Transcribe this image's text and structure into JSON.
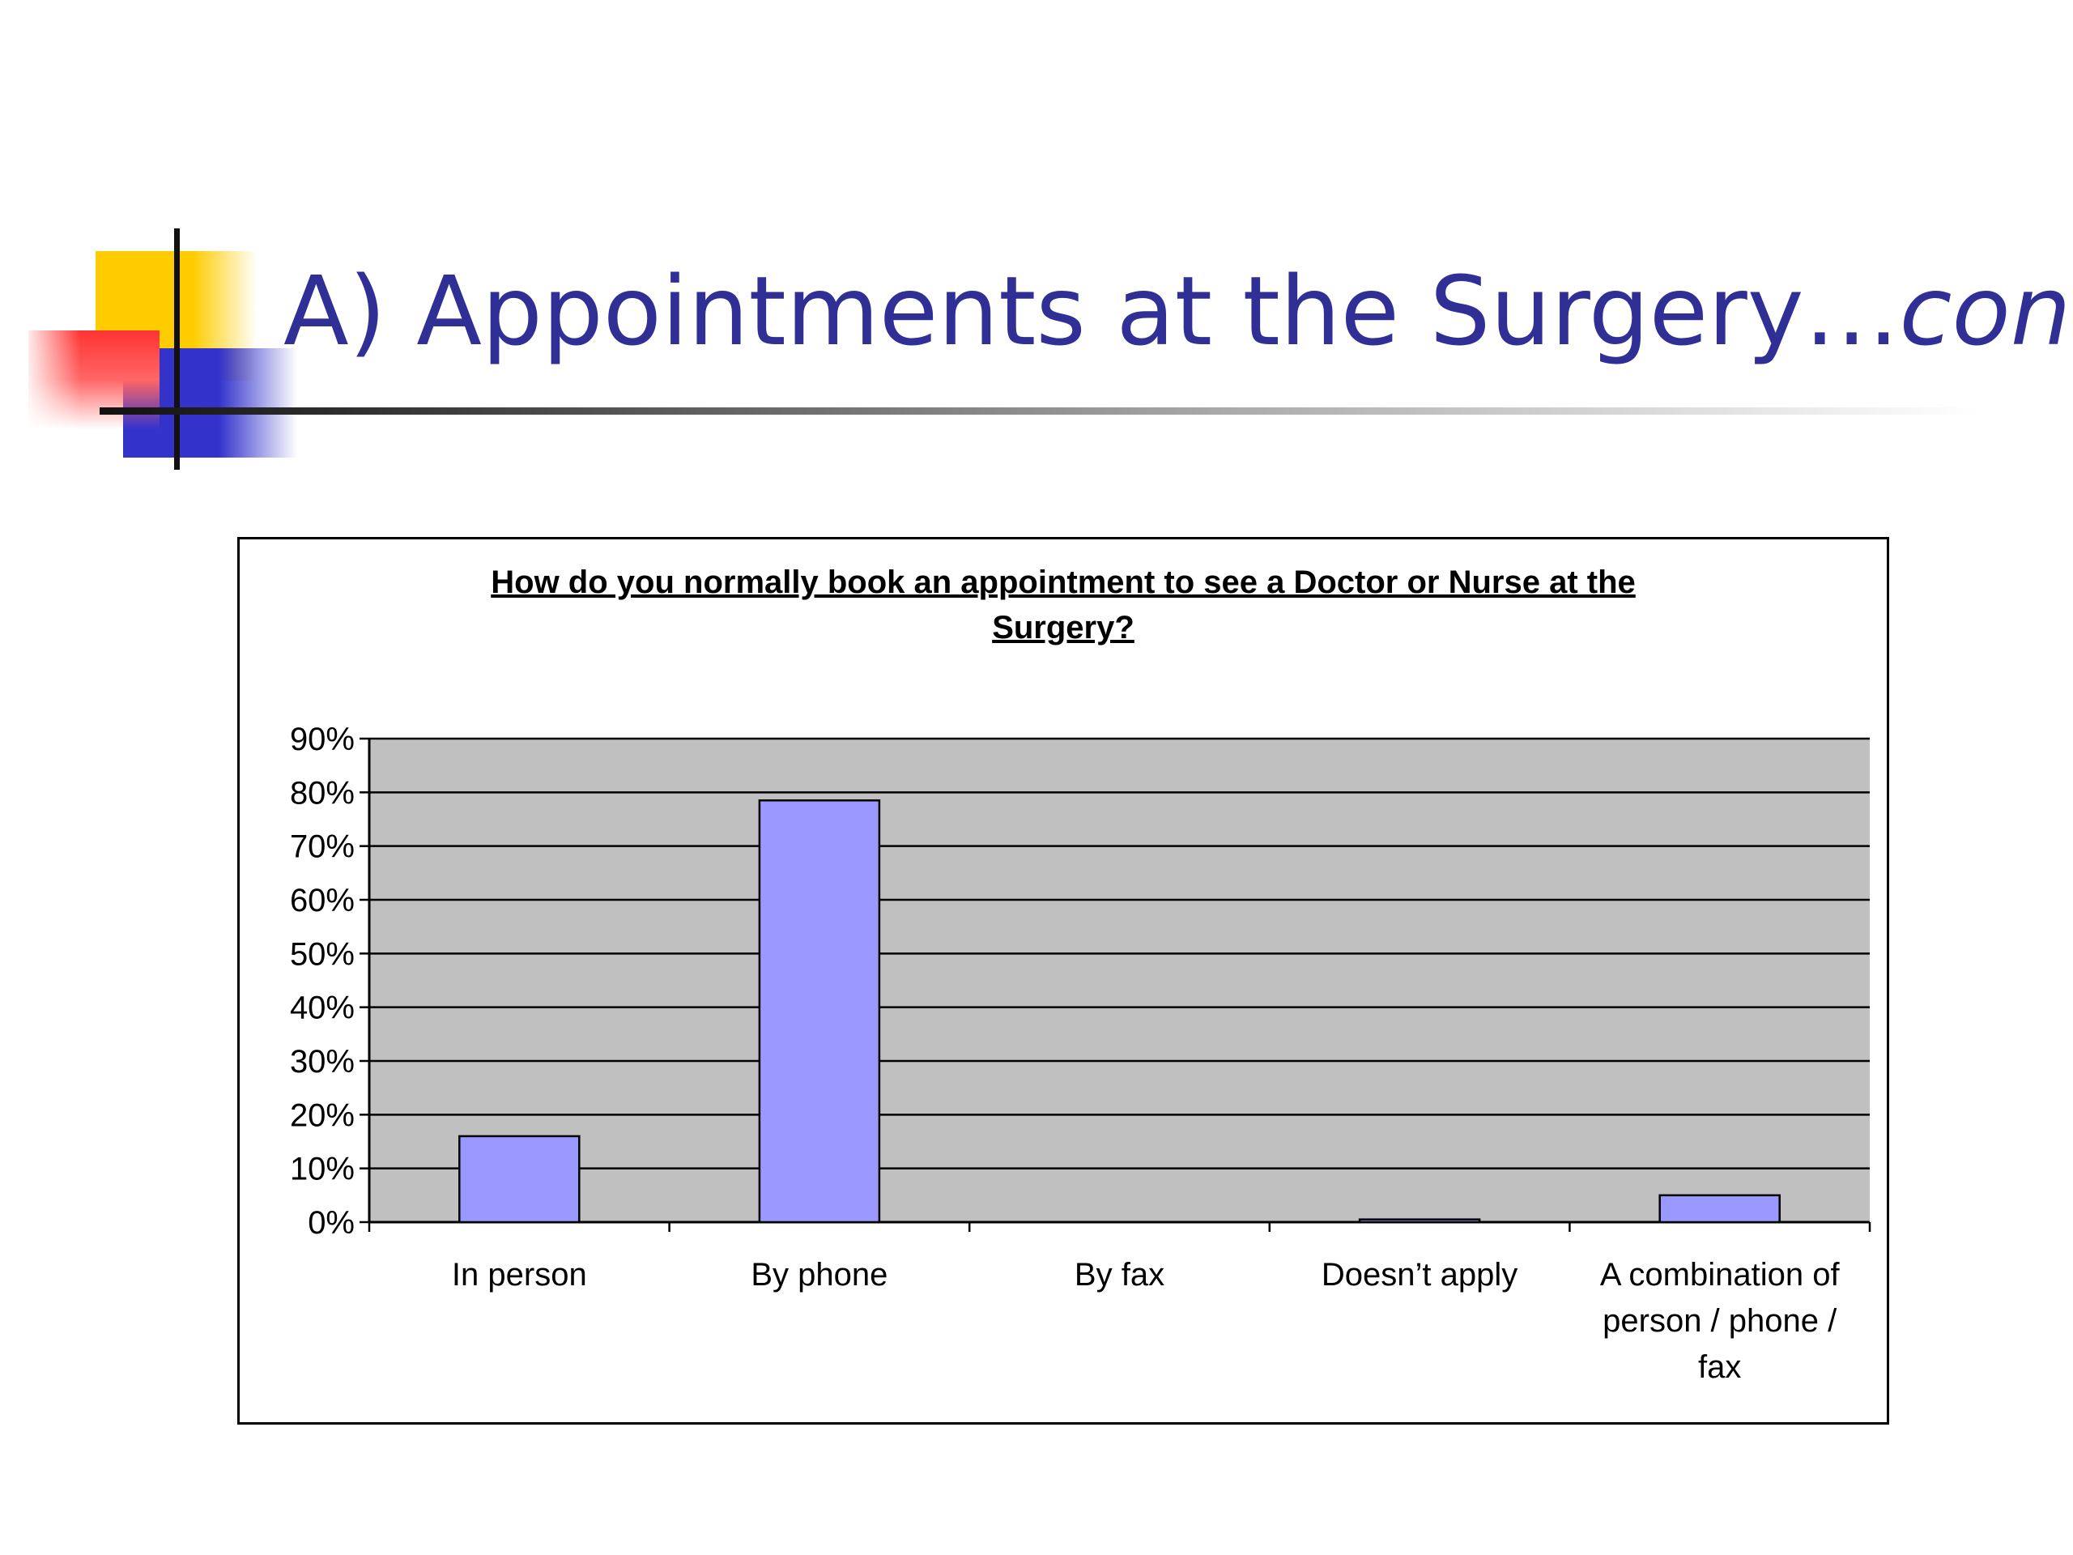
{
  "slide": {
    "title_main": "A) Appointments at the Surgery…",
    "title_cont": "cont",
    "colors": {
      "title": "#2f2f96",
      "yellow": "#ffcc00",
      "red": "#ff3333",
      "blue": "#3333cc"
    }
  },
  "chart_data": {
    "type": "bar",
    "title_lines": [
      "How do you normally book an appointment to see a Doctor or Nurse at the",
      "Surgery?"
    ],
    "categories": [
      [
        "In person"
      ],
      [
        "By phone"
      ],
      [
        "By fax"
      ],
      [
        "Doesn’t apply"
      ],
      [
        "A combination of",
        "person / phone /",
        "fax"
      ]
    ],
    "values": [
      16,
      78.5,
      0,
      0.5,
      5
    ],
    "yticks": [
      "0%",
      "10%",
      "20%",
      "30%",
      "40%",
      "50%",
      "60%",
      "70%",
      "80%",
      "90%"
    ],
    "ylim": [
      0,
      90
    ],
    "grid": true,
    "legend": "none",
    "colors": {
      "bar": "#9999ff",
      "plot_bg": "#c0c0c0",
      "grid": "#000000"
    }
  }
}
